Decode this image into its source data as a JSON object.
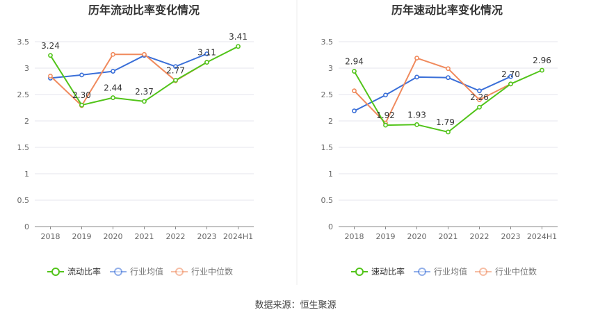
{
  "source_label": "数据来源：恒生聚源",
  "colors": {
    "company": "#52c41a",
    "industry_avg": "#3a6fd8",
    "industry_median": "#f08a5d",
    "axis": "#666666",
    "grid": "#e4e4ee"
  },
  "chart_data": [
    {
      "type": "line",
      "title": "历年流动比率变化情况",
      "categories": [
        "2018",
        "2019",
        "2020",
        "2021",
        "2022",
        "2023",
        "2024H1"
      ],
      "ylim": [
        0,
        3.5
      ],
      "yticks": [
        "0",
        "0.5",
        "1",
        "1.5",
        "2",
        "2.5",
        "3",
        "3.5"
      ],
      "grid": true,
      "legend_position": "bottom",
      "series": [
        {
          "name": "流动比率",
          "color_key": "company",
          "values": [
            3.24,
            2.3,
            2.44,
            2.37,
            2.77,
            3.11,
            3.41
          ],
          "labels": [
            "3.24",
            "2.30",
            "2.44",
            "2.37",
            "2.77",
            "3.11",
            "3.41"
          ]
        },
        {
          "name": "行业均值",
          "color_key": "industry_avg",
          "values": [
            2.81,
            2.87,
            2.94,
            3.24,
            3.03,
            3.27,
            null
          ]
        },
        {
          "name": "行业中位数",
          "color_key": "industry_median",
          "values": [
            2.85,
            2.29,
            3.26,
            3.26,
            2.76,
            3.11,
            null
          ]
        }
      ]
    },
    {
      "type": "line",
      "title": "历年速动比率变化情况",
      "categories": [
        "2018",
        "2019",
        "2020",
        "2021",
        "2022",
        "2023",
        "2024H1"
      ],
      "ylim": [
        0,
        3.5
      ],
      "yticks": [
        "0",
        "0.5",
        "1",
        "1.5",
        "2",
        "2.5",
        "3",
        "3.5"
      ],
      "grid": true,
      "legend_position": "bottom",
      "series": [
        {
          "name": "速动比率",
          "color_key": "company",
          "values": [
            2.94,
            1.92,
            1.93,
            1.79,
            2.26,
            2.7,
            2.96
          ],
          "labels": [
            "2.94",
            "1.92",
            "1.93",
            "1.79",
            "2.26",
            "2.70",
            "2.96"
          ]
        },
        {
          "name": "行业均值",
          "color_key": "industry_avg",
          "values": [
            2.19,
            2.49,
            2.83,
            2.82,
            2.57,
            2.84,
            null
          ]
        },
        {
          "name": "行业中位数",
          "color_key": "industry_median",
          "values": [
            2.57,
            1.96,
            3.19,
            2.99,
            2.4,
            2.7,
            null
          ]
        }
      ]
    }
  ]
}
